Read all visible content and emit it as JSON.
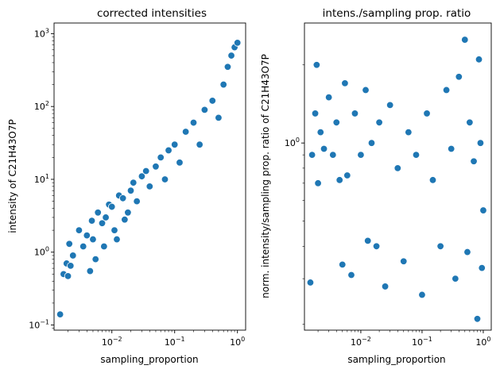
{
  "chart_data": [
    {
      "type": "scatter",
      "title": "corrected intensities",
      "xlabel": "sampling_proportion",
      "ylabel": "intensity of C21H43O7P",
      "xscale": "log",
      "yscale": "log",
      "xlim": [
        0.0012,
        1.35
      ],
      "ylim": [
        0.085,
        1400
      ],
      "xticks": [
        {
          "value": 0.01,
          "label": "10",
          "exp": "−2"
        },
        {
          "value": 0.1,
          "label": "10",
          "exp": "−1"
        },
        {
          "value": 1,
          "label": "10",
          "exp": "0"
        }
      ],
      "yticks": [
        {
          "value": 0.1,
          "label": "10",
          "exp": "−1"
        },
        {
          "value": 1,
          "label": "10",
          "exp": "0"
        },
        {
          "value": 10,
          "label": "10",
          "exp": "1"
        },
        {
          "value": 100,
          "label": "10",
          "exp": "2"
        },
        {
          "value": 1000,
          "label": "10",
          "exp": "3"
        }
      ],
      "color": "#1f77b4",
      "grid": false,
      "points": [
        [
          0.0015,
          0.14
        ],
        [
          0.0017,
          0.5
        ],
        [
          0.0019,
          0.7
        ],
        [
          0.002,
          0.47
        ],
        [
          0.0021,
          1.3
        ],
        [
          0.0022,
          0.65
        ],
        [
          0.0024,
          0.9
        ],
        [
          0.003,
          2.0
        ],
        [
          0.0035,
          1.2
        ],
        [
          0.004,
          1.7
        ],
        [
          0.0045,
          0.55
        ],
        [
          0.0048,
          2.7
        ],
        [
          0.005,
          1.5
        ],
        [
          0.0055,
          0.8
        ],
        [
          0.006,
          3.5
        ],
        [
          0.007,
          2.5
        ],
        [
          0.0075,
          1.2
        ],
        [
          0.008,
          3.0
        ],
        [
          0.009,
          4.5
        ],
        [
          0.01,
          4.2
        ],
        [
          0.011,
          2.0
        ],
        [
          0.012,
          1.5
        ],
        [
          0.013,
          6.0
        ],
        [
          0.015,
          5.5
        ],
        [
          0.016,
          2.8
        ],
        [
          0.018,
          3.5
        ],
        [
          0.02,
          7.0
        ],
        [
          0.022,
          9.0
        ],
        [
          0.025,
          5.0
        ],
        [
          0.03,
          11
        ],
        [
          0.035,
          13
        ],
        [
          0.04,
          8.0
        ],
        [
          0.05,
          15
        ],
        [
          0.06,
          20
        ],
        [
          0.07,
          10
        ],
        [
          0.08,
          25
        ],
        [
          0.1,
          30
        ],
        [
          0.12,
          17
        ],
        [
          0.15,
          45
        ],
        [
          0.2,
          60
        ],
        [
          0.25,
          30
        ],
        [
          0.3,
          90
        ],
        [
          0.4,
          120
        ],
        [
          0.5,
          70
        ],
        [
          0.6,
          200
        ],
        [
          0.7,
          350
        ],
        [
          0.8,
          500
        ],
        [
          0.9,
          650
        ],
        [
          1.0,
          750
        ]
      ]
    },
    {
      "type": "scatter",
      "title": "intens./sampling prop. ratio",
      "xlabel": "sampling_proportion",
      "ylabel": "norm. intensity/sampling prop. ratio of C21H43O7P",
      "xscale": "log",
      "yscale": "log",
      "xlim": [
        0.0012,
        1.35
      ],
      "ylim": [
        0.19,
        2.9
      ],
      "xticks": [
        {
          "value": 0.01,
          "label": "10",
          "exp": "−2"
        },
        {
          "value": 0.1,
          "label": "10",
          "exp": "−1"
        },
        {
          "value": 1,
          "label": "10",
          "exp": "0"
        }
      ],
      "yticks": [
        {
          "value": 1,
          "label": "10",
          "exp": "0"
        }
      ],
      "color": "#1f77b4",
      "grid": false,
      "points": [
        [
          0.0015,
          0.29
        ],
        [
          0.0016,
          0.9
        ],
        [
          0.0018,
          1.3
        ],
        [
          0.0019,
          2.0
        ],
        [
          0.002,
          0.7
        ],
        [
          0.0022,
          1.1
        ],
        [
          0.0025,
          0.95
        ],
        [
          0.003,
          1.5
        ],
        [
          0.0035,
          0.9
        ],
        [
          0.004,
          1.2
        ],
        [
          0.0045,
          0.72
        ],
        [
          0.005,
          0.34
        ],
        [
          0.0055,
          1.7
        ],
        [
          0.006,
          0.75
        ],
        [
          0.007,
          0.31
        ],
        [
          0.008,
          1.3
        ],
        [
          0.01,
          0.9
        ],
        [
          0.012,
          1.6
        ],
        [
          0.013,
          0.42
        ],
        [
          0.015,
          1.0
        ],
        [
          0.018,
          0.4
        ],
        [
          0.02,
          1.2
        ],
        [
          0.025,
          0.28
        ],
        [
          0.03,
          1.4
        ],
        [
          0.04,
          0.8
        ],
        [
          0.05,
          0.35
        ],
        [
          0.06,
          1.1
        ],
        [
          0.08,
          0.9
        ],
        [
          0.1,
          0.26
        ],
        [
          0.12,
          1.3
        ],
        [
          0.15,
          0.72
        ],
        [
          0.2,
          0.4
        ],
        [
          0.25,
          1.6
        ],
        [
          0.3,
          0.95
        ],
        [
          0.35,
          0.3
        ],
        [
          0.4,
          1.8
        ],
        [
          0.5,
          2.5
        ],
        [
          0.55,
          0.38
        ],
        [
          0.6,
          1.2
        ],
        [
          0.7,
          0.85
        ],
        [
          0.8,
          0.21
        ],
        [
          0.85,
          2.1
        ],
        [
          0.9,
          1.0
        ],
        [
          0.95,
          0.33
        ],
        [
          1.0,
          0.55
        ]
      ]
    }
  ]
}
